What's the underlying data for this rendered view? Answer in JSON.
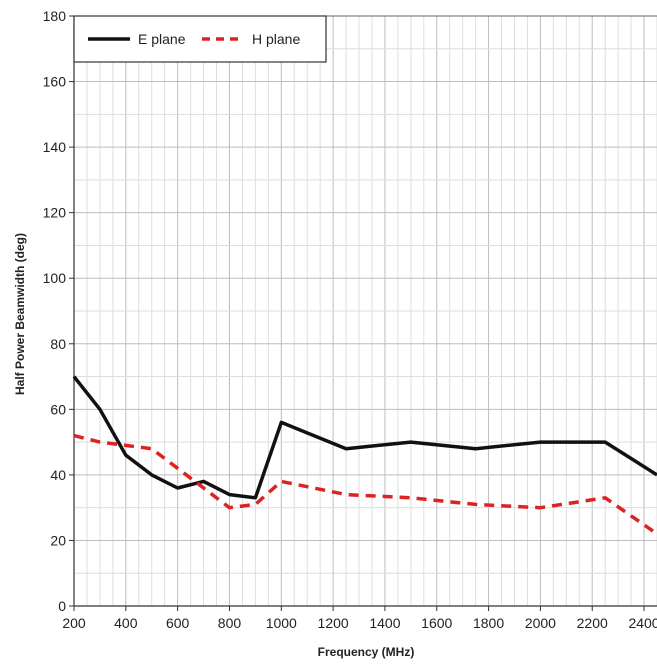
{
  "chart_data": {
    "type": "line",
    "xlabel": "Frequency (MHz)",
    "ylabel": "Half Power Beamwidth (deg)",
    "xlim": [
      200,
      2450
    ],
    "ylim": [
      0,
      180
    ],
    "x_ticks": [
      200,
      400,
      600,
      800,
      1000,
      1200,
      1400,
      1600,
      1800,
      2000,
      2200,
      2400
    ],
    "y_ticks": [
      0,
      20,
      40,
      60,
      80,
      100,
      120,
      140,
      160,
      180
    ],
    "grid": true,
    "legend_position": "top-left",
    "series": [
      {
        "name": "E plane",
        "color": "#111111",
        "style": "solid",
        "x": [
          200,
          300,
          400,
          500,
          600,
          700,
          800,
          900,
          1000,
          1250,
          1500,
          1750,
          2000,
          2250,
          2450
        ],
        "y": [
          70,
          60,
          46,
          40,
          36,
          38,
          34,
          33,
          56,
          48,
          50,
          48,
          50,
          50,
          40
        ]
      },
      {
        "name": "H plane",
        "color": "#dd2222",
        "style": "dashed",
        "x": [
          200,
          300,
          400,
          500,
          600,
          700,
          800,
          900,
          1000,
          1250,
          1500,
          1750,
          2000,
          2250,
          2450
        ],
        "y": [
          52,
          50,
          49,
          48,
          42,
          36,
          30,
          31,
          38,
          34,
          33,
          31,
          30,
          33,
          22
        ]
      }
    ]
  }
}
